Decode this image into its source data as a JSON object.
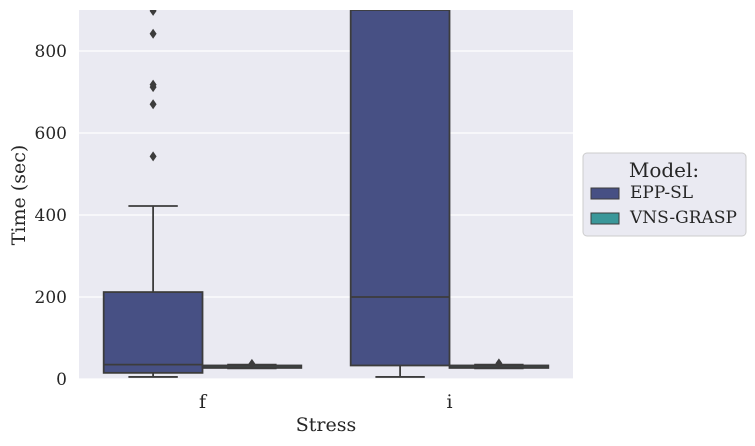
{
  "chart_data": {
    "type": "box",
    "xlabel": "Stress",
    "ylabel": "Time (sec)",
    "categories": [
      "f",
      "i"
    ],
    "ylim": [
      0,
      900
    ],
    "yticks": [
      0,
      200,
      400,
      600,
      800
    ],
    "grid": true,
    "legend": {
      "title": "Model:",
      "placement": "center-right-outside",
      "entries": [
        "EPP-SL",
        "VNS-GRASP"
      ]
    },
    "colors": {
      "EPP-SL": "#475084",
      "VNS-GRASP": "#3a9799",
      "background": "#eaeaf2",
      "edge": "#3c3c3c"
    },
    "series": [
      {
        "name": "EPP-SL",
        "boxes": [
          {
            "category": "f",
            "whisker_low": 5,
            "q1": 15,
            "median": 35,
            "q3": 212,
            "whisker_high": 422,
            "outliers": [
              543,
              670,
              712,
              718,
              842,
              898,
              902
            ]
          },
          {
            "category": "i",
            "whisker_low": 5,
            "q1": 33,
            "median": 200,
            "q3": 900,
            "whisker_high": 900,
            "outliers": []
          }
        ]
      },
      {
        "name": "VNS-GRASP",
        "boxes": [
          {
            "category": "f",
            "whisker_low": 26,
            "q1": 27,
            "median": 29,
            "q3": 33,
            "whisker_high": 35,
            "outliers": [
              37
            ]
          },
          {
            "category": "i",
            "whisker_low": 26,
            "q1": 27,
            "median": 29,
            "q3": 33,
            "whisker_high": 35,
            "outliers": [
              38
            ]
          }
        ]
      }
    ]
  }
}
